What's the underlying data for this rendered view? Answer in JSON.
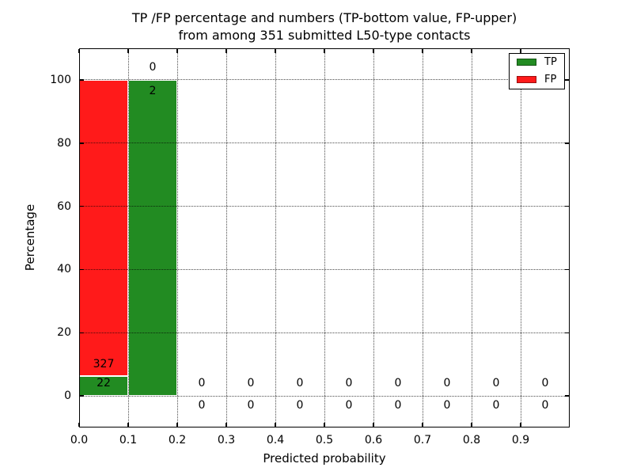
{
  "chart_data": {
    "type": "bar",
    "stacked": true,
    "title_line1": "TP /FP percentage and numbers (TP-bottom value, FP-upper)",
    "title_line2": "from among 351 submitted L50-type contacts",
    "xlabel": "Predicted probability",
    "ylabel": "Percentage",
    "xlim": [
      0.0,
      1.0
    ],
    "ylim": [
      -10,
      110
    ],
    "grid": true,
    "grid_style": "dotted",
    "total_contacts": 351,
    "bins": {
      "start": 0.0,
      "width": 0.1,
      "count": 10
    },
    "xticks": [
      {
        "v": 0.0,
        "label": "0.0"
      },
      {
        "v": 0.1,
        "label": "0.1"
      },
      {
        "v": 0.2,
        "label": "0.2"
      },
      {
        "v": 0.3,
        "label": "0.3"
      },
      {
        "v": 0.4,
        "label": "0.4"
      },
      {
        "v": 0.5,
        "label": "0.5"
      },
      {
        "v": 0.6,
        "label": "0.6"
      },
      {
        "v": 0.7,
        "label": "0.7"
      },
      {
        "v": 0.8,
        "label": "0.8"
      },
      {
        "v": 0.9,
        "label": "0.9"
      }
    ],
    "yticks": [
      {
        "v": 0,
        "label": "0"
      },
      {
        "v": 20,
        "label": "20"
      },
      {
        "v": 40,
        "label": "40"
      },
      {
        "v": 60,
        "label": "60"
      },
      {
        "v": 80,
        "label": "80"
      },
      {
        "v": 100,
        "label": "100"
      }
    ],
    "series": [
      {
        "name": "TP",
        "color": "#228B22",
        "counts": [
          22,
          2,
          0,
          0,
          0,
          0,
          0,
          0,
          0,
          0
        ],
        "pct": [
          6.3,
          100,
          0,
          0,
          0,
          0,
          0,
          0,
          0,
          0
        ]
      },
      {
        "name": "FP",
        "color": "#FF1A1A",
        "counts": [
          327,
          0,
          0,
          0,
          0,
          0,
          0,
          0,
          0,
          0
        ],
        "pct": [
          93.7,
          0,
          0,
          0,
          0,
          0,
          0,
          0,
          0,
          0
        ]
      }
    ],
    "bar_edge_color": "#ffffff",
    "annotations": [
      {
        "x": 0.05,
        "y": 10,
        "text": "327"
      },
      {
        "x": 0.05,
        "y": 4,
        "text": "22"
      },
      {
        "x": 0.15,
        "y": 104,
        "text": "0"
      },
      {
        "x": 0.15,
        "y": 96.5,
        "text": "2"
      },
      {
        "x": 0.25,
        "y": 4,
        "text": "0"
      },
      {
        "x": 0.25,
        "y": -3,
        "text": "0"
      },
      {
        "x": 0.35,
        "y": 4,
        "text": "0"
      },
      {
        "x": 0.35,
        "y": -3,
        "text": "0"
      },
      {
        "x": 0.45,
        "y": 4,
        "text": "0"
      },
      {
        "x": 0.45,
        "y": -3,
        "text": "0"
      },
      {
        "x": 0.55,
        "y": 4,
        "text": "0"
      },
      {
        "x": 0.55,
        "y": -3,
        "text": "0"
      },
      {
        "x": 0.65,
        "y": 4,
        "text": "0"
      },
      {
        "x": 0.65,
        "y": -3,
        "text": "0"
      },
      {
        "x": 0.75,
        "y": 4,
        "text": "0"
      },
      {
        "x": 0.75,
        "y": -3,
        "text": "0"
      },
      {
        "x": 0.85,
        "y": 4,
        "text": "0"
      },
      {
        "x": 0.85,
        "y": -3,
        "text": "0"
      },
      {
        "x": 0.95,
        "y": 4,
        "text": "0"
      },
      {
        "x": 0.95,
        "y": -3,
        "text": "0"
      }
    ],
    "legend": {
      "location": "upper right"
    }
  }
}
